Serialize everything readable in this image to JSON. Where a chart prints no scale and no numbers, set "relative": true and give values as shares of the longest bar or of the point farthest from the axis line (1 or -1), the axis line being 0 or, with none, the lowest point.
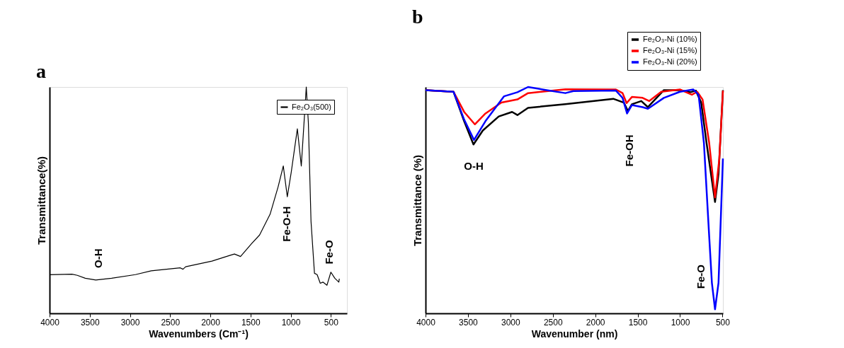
{
  "chart_data": [
    {
      "type": "line",
      "title": "a",
      "xlabel": "Wavenumbers (Cm⁻¹)",
      "ylabel": "Transmittance(%)",
      "relative": true,
      "legend": "top right",
      "grid": false,
      "xlim": [
        4000,
        300
      ],
      "xticks": [
        4000,
        3500,
        3000,
        2500,
        2000,
        1500,
        1000,
        500
      ],
      "x": [
        4000,
        3721,
        3655,
        3556,
        3425,
        3228,
        2932,
        2735,
        2373,
        2340,
        2307,
        1979,
        1765,
        1700,
        1624,
        1486,
        1387,
        1256,
        1157,
        1092,
        1042,
        993,
        917,
        868,
        806,
        780,
        747,
        704,
        671,
        632,
        599,
        549,
        500,
        451,
        401,
        395
      ],
      "series": [
        {
          "name": "Fe₂O₃(500)",
          "color": "#000000",
          "values": [
            0.171,
            0.173,
            0.168,
            0.155,
            0.147,
            0.155,
            0.171,
            0.188,
            0.201,
            0.195,
            0.206,
            0.231,
            0.255,
            0.262,
            0.251,
            0.308,
            0.346,
            0.438,
            0.558,
            0.651,
            0.515,
            0.624,
            0.815,
            0.651,
            1.0,
            0.842,
            0.406,
            0.177,
            0.171,
            0.133,
            0.138,
            0.124,
            0.182,
            0.155,
            0.138,
            0.153
          ]
        }
      ],
      "annotations": [
        "O-H",
        "Fe-O-H",
        "Fe-O"
      ]
    },
    {
      "type": "line",
      "title": "b",
      "xlabel": "Wavenumber (nm)",
      "ylabel": "Transmittance (%)",
      "relative": true,
      "legend": "top right",
      "grid": false,
      "xlim": [
        4000,
        495
      ],
      "xticks": [
        4000,
        3500,
        3000,
        2500,
        2000,
        1500,
        1000,
        500
      ],
      "series": [
        {
          "name": "Fe₂O₃-Ni (10%)",
          "color": "#000000",
          "x": [
            4000,
            3670,
            3545,
            3435,
            3325,
            3137,
            2980,
            2917,
            2792,
            2352,
            1787,
            1662,
            1615,
            1568,
            1457,
            1379,
            1191,
            1002,
            877,
            814,
            751,
            688,
            625,
            588,
            547,
            495
          ],
          "values": [
            0.986,
            0.979,
            0.849,
            0.746,
            0.808,
            0.87,
            0.89,
            0.876,
            0.908,
            0.924,
            0.948,
            0.931,
            0.894,
            0.924,
            0.938,
            0.911,
            0.986,
            0.986,
            0.977,
            0.984,
            0.931,
            0.753,
            0.588,
            0.492,
            0.615,
            0.986
          ]
        },
        {
          "name": "Fe₂O₃-Ni (15%)",
          "color": "#ff0000",
          "x": [
            4000,
            3670,
            3545,
            3419,
            3294,
            3106,
            2917,
            2792,
            2352,
            1756,
            1678,
            1630,
            1568,
            1442,
            1363,
            1222,
            1002,
            861,
            798,
            735,
            657,
            588,
            537,
            495
          ],
          "values": [
            0.986,
            0.979,
            0.89,
            0.835,
            0.883,
            0.931,
            0.945,
            0.973,
            0.99,
            0.989,
            0.973,
            0.929,
            0.956,
            0.952,
            0.938,
            0.979,
            0.989,
            0.966,
            0.979,
            0.945,
            0.753,
            0.512,
            0.684,
            0.984
          ]
        },
        {
          "name": "Fe₂O₃-Ni (20%)",
          "color": "#0000ff",
          "x": [
            4000,
            3670,
            3545,
            3429,
            3294,
            3074,
            2917,
            2792,
            2572,
            2352,
            2258,
            1756,
            1678,
            1625,
            1568,
            1442,
            1379,
            1191,
            1002,
            845,
            782,
            719,
            657,
            625,
            588,
            547,
            495
          ],
          "values": [
            0.986,
            0.979,
            0.856,
            0.766,
            0.849,
            0.959,
            0.977,
            1.0,
            0.986,
            0.973,
            0.982,
            0.984,
            0.952,
            0.883,
            0.92,
            0.911,
            0.904,
            0.952,
            0.979,
            0.989,
            0.966,
            0.753,
            0.341,
            0.135,
            0.018,
            0.135,
            0.684
          ]
        }
      ],
      "annotations": [
        "O-H",
        "Fe-OH",
        "Fe-O"
      ]
    }
  ]
}
